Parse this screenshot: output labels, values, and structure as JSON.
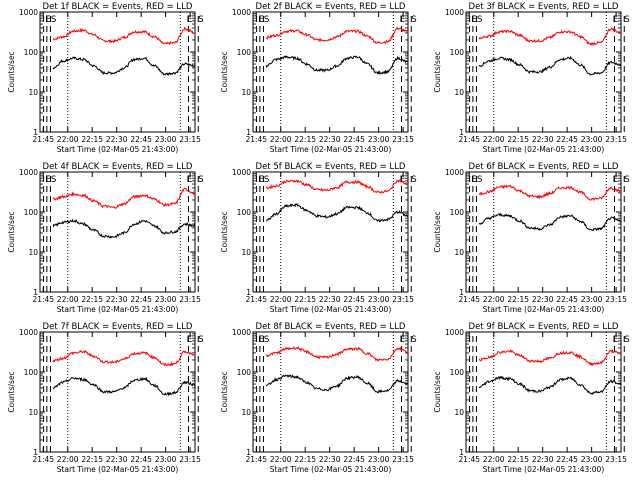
{
  "figure": {
    "ylabel": "Counts/sec",
    "xlabel": "Start Time (02-Mar-05 21:43:00)",
    "x_ticks": [
      "21:45",
      "22:00",
      "22:15",
      "22:30",
      "22:45",
      "23:00",
      "23:15"
    ],
    "y_ticks": [
      "1",
      "10",
      "100",
      "1000"
    ]
  },
  "chart_data": [
    {
      "type": "line",
      "title": "Det 1f BLACK = Events, RED = LLD",
      "markers": [
        "ES",
        "E",
        "S"
      ],
      "red": [
        210,
        240,
        330,
        350,
        270,
        190,
        185,
        230,
        320,
        320,
        240,
        160,
        170,
        380,
        300
      ],
      "black": [
        40,
        60,
        70,
        65,
        45,
        30,
        30,
        40,
        65,
        70,
        45,
        28,
        30,
        50,
        45
      ],
      "xlim_minutes": [
        0,
        95
      ],
      "ylim": [
        1,
        1000
      ],
      "log_y": true
    },
    {
      "type": "line",
      "title": "Det 2f BLACK = Events, RED = LLD",
      "markers": [
        "ES",
        "E",
        "S"
      ],
      "red": [
        230,
        260,
        330,
        340,
        270,
        200,
        200,
        240,
        330,
        330,
        250,
        170,
        180,
        390,
        320
      ],
      "black": [
        45,
        65,
        75,
        70,
        50,
        35,
        35,
        45,
        70,
        75,
        50,
        30,
        32,
        70,
        55
      ],
      "xlim_minutes": [
        0,
        95
      ],
      "ylim": [
        1,
        1000
      ],
      "log_y": true
    },
    {
      "type": "line",
      "title": "Det 3f BLACK = Events, RED = LLD",
      "markers": [
        "ES",
        "E",
        "S"
      ],
      "red": [
        220,
        250,
        320,
        330,
        260,
        190,
        190,
        230,
        320,
        320,
        240,
        160,
        170,
        380,
        300
      ],
      "black": [
        45,
        60,
        70,
        65,
        48,
        32,
        32,
        42,
        65,
        70,
        47,
        28,
        30,
        55,
        48
      ],
      "xlim_minutes": [
        0,
        95
      ],
      "ylim": [
        1,
        1000
      ],
      "log_y": true
    },
    {
      "type": "line",
      "title": "Det 4f BLACK = Events, RED = LLD",
      "markers": [
        "ES",
        "E",
        "S"
      ],
      "red": [
        210,
        240,
        280,
        260,
        190,
        140,
        130,
        160,
        240,
        260,
        210,
        150,
        160,
        370,
        290
      ],
      "black": [
        45,
        55,
        60,
        50,
        35,
        25,
        24,
        30,
        50,
        60,
        45,
        30,
        32,
        50,
        45
      ],
      "xlim_minutes": [
        0,
        95
      ],
      "ylim": [
        1,
        1000
      ],
      "log_y": true
    },
    {
      "type": "line",
      "title": "Det 5f BLACK = Events, RED = LLD",
      "markers": [
        "ES",
        "E",
        "S"
      ],
      "red": [
        400,
        450,
        580,
        600,
        480,
        360,
        350,
        410,
        560,
        560,
        430,
        310,
        330,
        600,
        500
      ],
      "black": [
        60,
        90,
        140,
        150,
        110,
        80,
        75,
        90,
        130,
        130,
        95,
        60,
        65,
        100,
        80
      ],
      "xlim_minutes": [
        0,
        95
      ],
      "ylim": [
        1,
        1000
      ],
      "log_y": true
    },
    {
      "type": "line",
      "title": "Det 6f BLACK = Events, RED = LLD",
      "markers": [
        "ES",
        "E",
        "S"
      ],
      "red": [
        280,
        320,
        420,
        440,
        340,
        250,
        240,
        290,
        400,
        410,
        310,
        210,
        220,
        400,
        330
      ],
      "black": [
        50,
        70,
        85,
        80,
        60,
        40,
        38,
        48,
        75,
        80,
        58,
        36,
        38,
        70,
        60
      ],
      "xlim_minutes": [
        0,
        95
      ],
      "ylim": [
        1,
        1000
      ],
      "log_y": true
    },
    {
      "type": "line",
      "title": "Det 7f BLACK = Events, RED = LLD",
      "markers": [
        "E",
        "S"
      ],
      "red": [
        190,
        220,
        300,
        320,
        250,
        180,
        175,
        210,
        290,
        300,
        230,
        150,
        160,
        320,
        280
      ],
      "black": [
        40,
        55,
        70,
        65,
        48,
        32,
        32,
        40,
        62,
        68,
        46,
        28,
        30,
        55,
        48
      ],
      "xlim_minutes": [
        0,
        95
      ],
      "ylim": [
        1,
        1000
      ],
      "log_y": true
    },
    {
      "type": "line",
      "title": "Det 8f BLACK = Events, RED = LLD",
      "markers": [
        "ES",
        "E",
        "S"
      ],
      "red": [
        260,
        300,
        380,
        400,
        320,
        240,
        230,
        280,
        370,
        380,
        290,
        200,
        210,
        390,
        320
      ],
      "black": [
        45,
        65,
        80,
        75,
        55,
        38,
        36,
        45,
        70,
        75,
        52,
        32,
        34,
        60,
        50
      ],
      "xlim_minutes": [
        0,
        95
      ],
      "ylim": [
        1,
        1000
      ],
      "log_y": true
    },
    {
      "type": "line",
      "title": "Det 9f BLACK = Events, RED = LLD",
      "markers": [
        "E",
        "S"
      ],
      "red": [
        200,
        230,
        310,
        330,
        260,
        190,
        185,
        220,
        300,
        310,
        240,
        160,
        170,
        330,
        290
      ],
      "black": [
        42,
        58,
        72,
        68,
        50,
        34,
        33,
        42,
        64,
        70,
        48,
        30,
        32,
        58,
        50
      ],
      "xlim_minutes": [
        0,
        95
      ],
      "ylim": [
        1,
        1000
      ],
      "log_y": true
    }
  ]
}
